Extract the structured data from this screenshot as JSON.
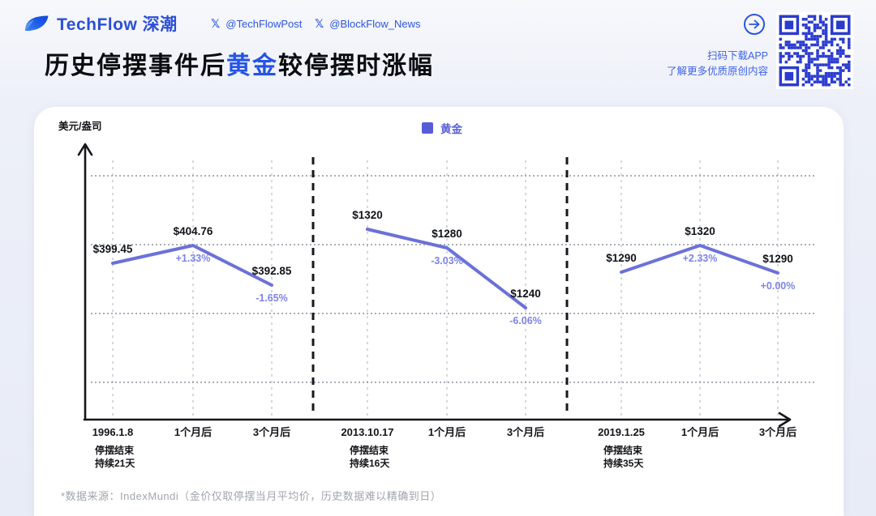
{
  "header": {
    "brand": "TechFlow 深潮",
    "handles": [
      {
        "label": "@TechFlowPost"
      },
      {
        "label": "@BlockFlow_News"
      }
    ],
    "qr_caption": [
      "扫码下载APP",
      "了解更多优质原创内容"
    ]
  },
  "title": {
    "prefix": "历史停摆事件后",
    "highlight": "黄金",
    "suffix": "较停摆时涨幅"
  },
  "footer": {
    "note": "*数据来源：IndexMundi（金价仅取停摆当月平均价，历史数据难以精确到日）"
  },
  "colors": {
    "brand_blue": "#2b4fd6",
    "accent_blue": "#2453e8",
    "line": "#6b71d9",
    "pct_label": "#7d83e8",
    "legend_swatch": "#565cd8",
    "qr_blue": "#2a3bd0",
    "grid_horizontal": "#8d929d",
    "grid_vertical": "#b9bdc7",
    "footnote_gray": "#a0a5ae"
  },
  "chart_data": {
    "type": "line",
    "title": "历史停摆事件后黄金较停摆时涨幅",
    "ylabel": "美元/盎司",
    "xlabel": "",
    "legend": [
      "黄金"
    ],
    "legend_position": "top-center",
    "grid": true,
    "groups": [
      {
        "event_date": "1996.1.8",
        "event_note": [
          "停摆结束",
          "持续21天"
        ],
        "categories": [
          "1996.1.8",
          "1个月后",
          "3个月后"
        ],
        "values": [
          399.45,
          404.76,
          392.85
        ],
        "value_labels": [
          "$399.45",
          "$404.76",
          "$392.85"
        ],
        "pct_labels": [
          null,
          "+1.33%",
          "-1.65%"
        ]
      },
      {
        "event_date": "2013.10.17",
        "event_note": [
          "停摆结束",
          "持续16天"
        ],
        "categories": [
          "2013.10.17",
          "1个月后",
          "3个月后"
        ],
        "values": [
          1320,
          1280,
          1240
        ],
        "value_labels": [
          "$1320",
          "$1280",
          "$1240"
        ],
        "pct_labels": [
          null,
          "-3.03%",
          "-6.06%"
        ]
      },
      {
        "event_date": "2019.1.25",
        "event_note": [
          "停摆结束",
          "持续35天"
        ],
        "categories": [
          "2019.1.25",
          "1个月后",
          "3个月后"
        ],
        "values": [
          1290,
          1320,
          1290
        ],
        "value_labels": [
          "$1290",
          "$1320",
          "$1290"
        ],
        "pct_labels": [
          null,
          "+2.33%",
          "+0.00%"
        ]
      }
    ]
  }
}
